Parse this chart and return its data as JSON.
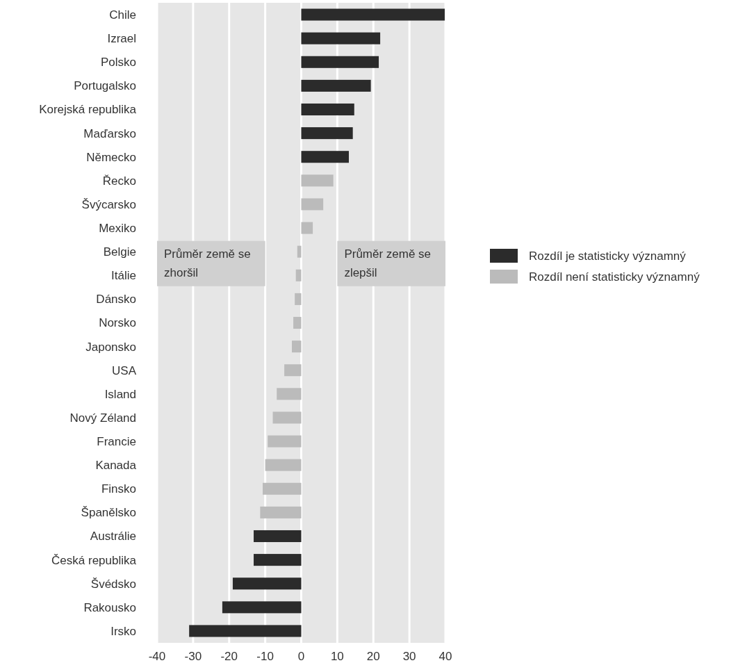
{
  "chart_data": {
    "type": "bar",
    "orientation": "horizontal",
    "categories": [
      "Chile",
      "Izrael",
      "Polsko",
      "Portugalsko",
      "Korejská republika",
      "Maďarsko",
      "Německo",
      "Řecko",
      "Švýcarsko",
      "Mexiko",
      "Belgie",
      "Itálie",
      "Dánsko",
      "Norsko",
      "Japonsko",
      "USA",
      "Island",
      "Nový Zéland",
      "Francie",
      "Kanada",
      "Finsko",
      "Španělsko",
      "Austrálie",
      "Česká republika",
      "Švédsko",
      "Rakousko",
      "Irsko"
    ],
    "series": [
      {
        "name": "Rozdíl je statisticky významný",
        "color": "#2b2b2b",
        "values": [
          39.8,
          21.9,
          21.5,
          19.3,
          14.7,
          14.3,
          13.2,
          null,
          null,
          null,
          null,
          null,
          null,
          null,
          null,
          null,
          null,
          null,
          null,
          null,
          null,
          null,
          -13.2,
          -13.2,
          -19.0,
          -21.9,
          -31.1
        ]
      },
      {
        "name": "Rozdíl není statisticky významný",
        "color": "#bbbbbb",
        "values": [
          null,
          null,
          null,
          null,
          null,
          null,
          null,
          8.9,
          6.1,
          3.2,
          -1.1,
          -1.5,
          -1.8,
          -2.2,
          -2.6,
          -4.7,
          -6.8,
          -7.9,
          -9.3,
          -10.0,
          -10.7,
          -11.4,
          null,
          null,
          null,
          null,
          null
        ]
      }
    ],
    "xlim": [
      -40,
      40
    ],
    "xticks": [
      -40,
      -30,
      -20,
      -10,
      0,
      10,
      20,
      30,
      40
    ],
    "grid": "x",
    "legend": "right",
    "annotations": [
      "Průměr země se zhoršil",
      "Průměr země se zlepšil"
    ]
  }
}
